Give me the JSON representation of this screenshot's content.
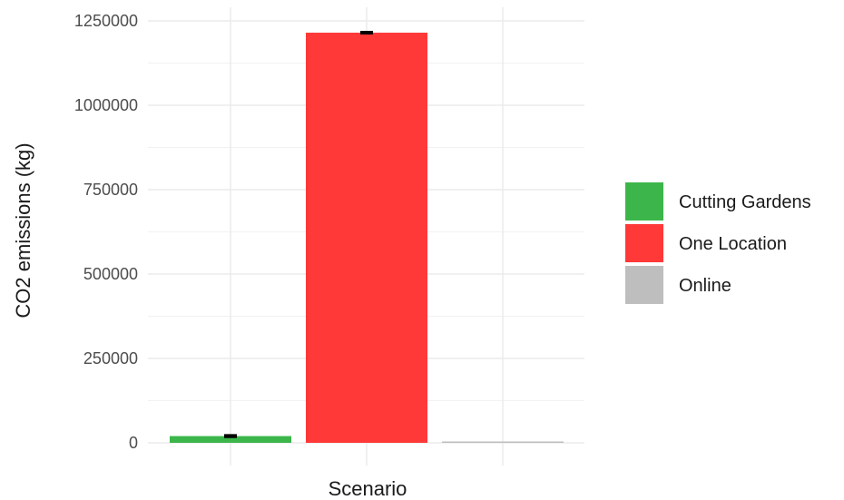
{
  "chart_data": {
    "type": "bar",
    "xlabel": "Scenario",
    "ylabel": "CO2 emissions (kg)",
    "ylim": [
      0,
      1250000
    ],
    "yticks": [
      0,
      250000,
      500000,
      750000,
      1000000,
      1250000
    ],
    "ytick_labels": [
      "0",
      "250000",
      "500000",
      "750000",
      "1000000",
      "1250000"
    ],
    "grid": true,
    "legend_position": "right",
    "legend_title": "",
    "categories": [
      "Cutting Gardens",
      "One Location",
      "Online"
    ],
    "series": [
      {
        "values": [
          20000,
          1215000,
          2000
        ],
        "error_low": [
          17500,
          1213000,
          2000
        ],
        "error_high": [
          22500,
          1217000,
          2000
        ],
        "colors": [
          "#3CB64A",
          "#FF3838",
          "#BEBEBE"
        ]
      }
    ],
    "legend": [
      {
        "label": "Cutting Gardens",
        "color": "#3CB64A"
      },
      {
        "label": "One Location",
        "color": "#FF3838"
      },
      {
        "label": "Online",
        "color": "#BEBEBE"
      }
    ]
  }
}
